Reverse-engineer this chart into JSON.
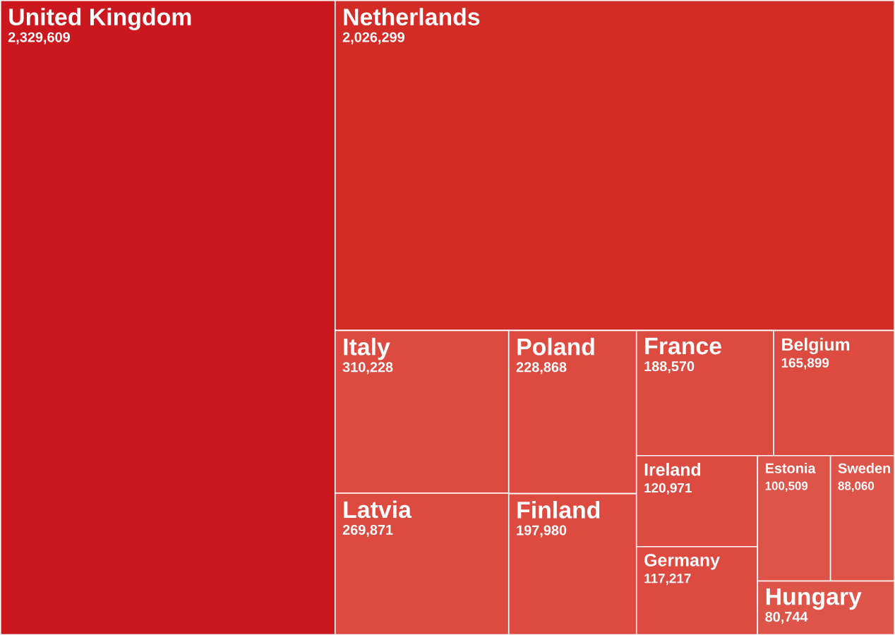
{
  "chart_data": {
    "type": "other",
    "categories": [
      "United Kingdom",
      "Netherlands",
      "Italy",
      "Latvia",
      "Poland",
      "Finland",
      "France",
      "Belgium",
      "Ireland",
      "Germany",
      "Estonia",
      "Sweden",
      "Hungary"
    ],
    "values": [
      2329609,
      2026299,
      310228,
      269871,
      228868,
      197980,
      188570,
      165899,
      120971,
      117217,
      100509,
      88060,
      80744
    ],
    "value_labels": [
      "2,329,609",
      "2,026,299",
      "310,228",
      "269,871",
      "228,868",
      "197,980",
      "188,570",
      "165,899",
      "120,971",
      "117,217",
      "100,509",
      "88,060",
      "80,744"
    ],
    "colors": [
      "#cb171e",
      "#d32c26",
      "#dc4a40",
      "#dc4a40",
      "#dc4a40",
      "#dc4a40",
      "#dc4a40",
      "#dc4a40",
      "#dc4a40",
      "#dc4a40",
      "#df5449",
      "#df5449",
      "#df5449"
    ]
  }
}
